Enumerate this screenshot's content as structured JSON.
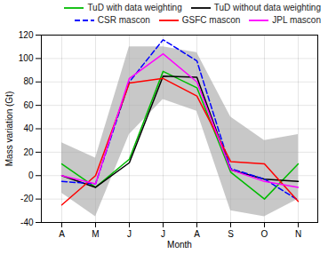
{
  "chart_data": {
    "type": "line",
    "categories": [
      "A",
      "M",
      "J",
      "J",
      "A",
      "S",
      "O",
      "N"
    ],
    "series": [
      {
        "name": "TuD with data weighting",
        "color": "#00bb00",
        "line_style": "solid",
        "values": [
          10,
          -10,
          14,
          89,
          75,
          3,
          -20,
          10
        ]
      },
      {
        "name": "TuD without data weighting",
        "color": "#000000",
        "line_style": "solid",
        "values": [
          0,
          -10,
          11,
          85,
          84,
          5,
          -3,
          -5
        ]
      },
      {
        "name": "CSR mascon",
        "color": "#0000ff",
        "line_style": "dashed",
        "values": [
          -5,
          -7,
          80,
          116,
          98,
          6,
          -3,
          -21
        ]
      },
      {
        "name": "GSFC mascon",
        "color": "#ff0000",
        "line_style": "solid",
        "values": [
          -25,
          0,
          79,
          83,
          68,
          12,
          10,
          -22
        ]
      },
      {
        "name": "JPL mascon",
        "color": "#ff00ff",
        "line_style": "solid",
        "values": [
          0,
          -7,
          83,
          104,
          80,
          5,
          -5,
          -10
        ]
      }
    ],
    "band": {
      "color": "#aaaaaa",
      "upper": [
        28,
        15,
        110,
        110,
        105,
        50,
        30,
        35
      ],
      "lower": [
        -15,
        -35,
        35,
        65,
        55,
        -30,
        -35,
        -20
      ]
    },
    "xlabel": "Month",
    "ylabel": "Mass variation (Gt)",
    "ylim": [
      -40,
      120
    ],
    "yticks": [
      -40,
      -20,
      0,
      20,
      40,
      60,
      80,
      100,
      120
    ],
    "grid": true,
    "legend": "upper right"
  }
}
